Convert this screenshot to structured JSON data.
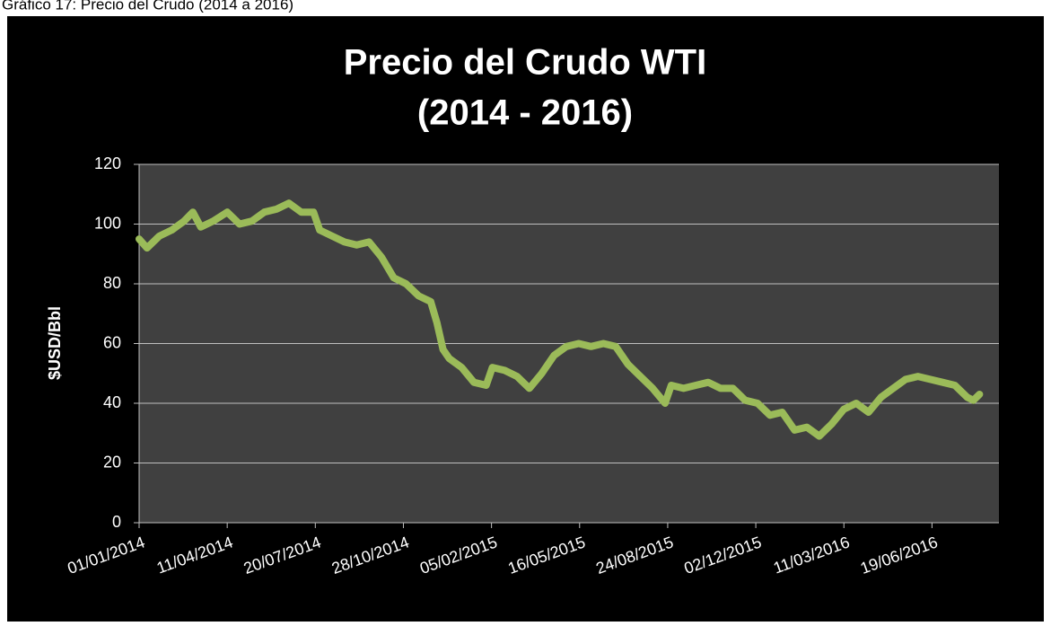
{
  "chart_data": {
    "type": "line",
    "caption": "Gráfico 17: Precio del Crudo (2014 a 2016)",
    "title": "Precio del Crudo WTI",
    "subtitle": "(2014 - 2016)",
    "ylabel": "$USD/Bbl",
    "x": [
      "01/01/2014",
      "10/01/2014",
      "24/01/2014",
      "07/02/2014",
      "21/02/2014",
      "03/03/2014",
      "12/03/2014",
      "26/03/2014",
      "11/04/2014",
      "25/04/2014",
      "09/05/2014",
      "23/05/2014",
      "06/06/2014",
      "20/06/2014",
      "04/07/2014",
      "18/07/2014",
      "25/07/2014",
      "08/08/2014",
      "22/08/2014",
      "05/09/2014",
      "19/09/2014",
      "03/10/2014",
      "17/10/2014",
      "31/10/2014",
      "14/11/2014",
      "28/11/2014",
      "05/12/2014",
      "12/12/2014",
      "19/12/2014",
      "02/01/2015",
      "16/01/2015",
      "30/01/2015",
      "06/02/2015",
      "20/02/2015",
      "06/03/2015",
      "20/03/2015",
      "03/04/2015",
      "17/04/2015",
      "01/05/2015",
      "15/05/2015",
      "29/05/2015",
      "12/06/2015",
      "26/06/2015",
      "10/07/2015",
      "24/07/2015",
      "07/08/2015",
      "21/08/2015",
      "28/08/2015",
      "11/09/2015",
      "25/09/2015",
      "09/10/2015",
      "23/10/2015",
      "06/11/2015",
      "20/11/2015",
      "04/12/2015",
      "18/12/2015",
      "01/01/2016",
      "15/01/2016",
      "29/01/2016",
      "12/02/2016",
      "26/02/2016",
      "11/03/2016",
      "25/03/2016",
      "08/04/2016",
      "22/04/2016",
      "06/05/2016",
      "20/05/2016",
      "03/06/2016",
      "17/06/2016",
      "01/07/2016",
      "15/07/2016",
      "29/07/2016",
      "05/08/2016",
      "12/08/2016"
    ],
    "series": [
      {
        "name": "WTI",
        "color": "#9bbb59",
        "values": [
          95,
          92,
          96,
          98,
          101,
          104,
          99,
          101,
          104,
          100,
          101,
          104,
          105,
          107,
          104,
          104,
          98,
          96,
          94,
          93,
          94,
          89,
          82,
          80,
          76,
          74,
          67,
          58,
          55,
          52,
          47,
          46,
          52,
          51,
          49,
          45,
          50,
          56,
          59,
          60,
          59,
          60,
          59,
          53,
          49,
          45,
          40,
          46,
          45,
          46,
          47,
          45,
          45,
          41,
          40,
          36,
          37,
          31,
          32,
          29,
          33,
          38,
          40,
          37,
          42,
          45,
          48,
          49,
          48,
          47,
          46,
          42,
          41,
          43
        ]
      }
    ],
    "xlim": [
      "01/01/2014",
      "03/09/2016"
    ],
    "xticks": [
      "01/01/2014",
      "11/04/2014",
      "20/07/2014",
      "28/10/2014",
      "05/02/2015",
      "16/05/2015",
      "24/08/2015",
      "02/12/2015",
      "11/03/2016",
      "19/06/2016"
    ],
    "ylim": [
      0,
      120
    ],
    "yticks": [
      0,
      20,
      40,
      60,
      80,
      100,
      120
    ],
    "grid": true,
    "background": "#000000",
    "plot_background": "#404040"
  }
}
